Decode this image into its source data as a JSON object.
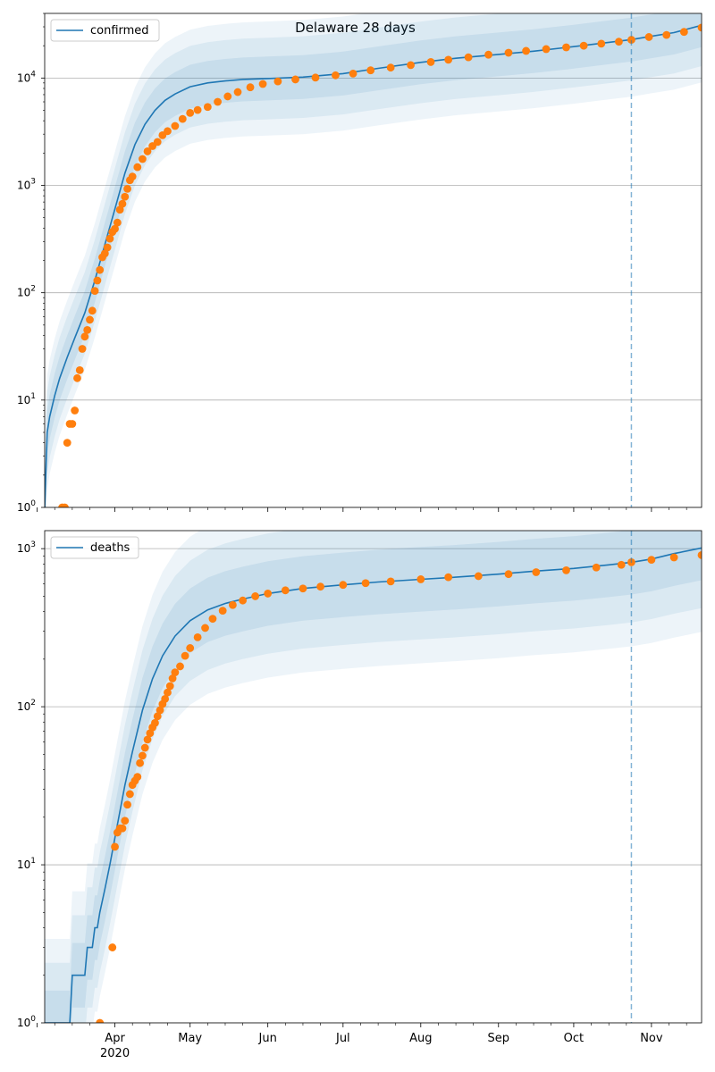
{
  "figure": {
    "title": "Delaware 28 days",
    "date_axis": {
      "month_labels": [
        "Apr",
        "May",
        "Jun",
        "Jul",
        "Aug",
        "Sep",
        "Oct",
        "Nov"
      ],
      "year_label": "2020"
    }
  },
  "colors": {
    "model_line": "#1f77b4",
    "observed_points": "#ff7f0e",
    "band": "#1f77b4",
    "grid": "#b0b0b0",
    "forecast_marker": "#1f77b4"
  },
  "chart_data": [
    {
      "type": "line",
      "panel": "confirmed",
      "legend": "confirmed",
      "legend_location": "upper-left",
      "yscale": "log",
      "ylim": [
        1,
        40000
      ],
      "xlim": [
        "2020-03-04",
        "2020-11-21"
      ],
      "y_tick_labels": [
        "10^0",
        "10^1",
        "10^2",
        "10^3",
        "10^4"
      ],
      "grid": "horizontal",
      "forecast_start": "2020-10-24",
      "model": {
        "x": [
          "2020-03-04",
          "2020-03-05",
          "2020-03-06",
          "2020-03-08",
          "2020-03-10",
          "2020-03-13",
          "2020-03-16",
          "2020-03-20",
          "2020-03-24",
          "2020-03-28",
          "2020-04-01",
          "2020-04-05",
          "2020-04-09",
          "2020-04-13",
          "2020-04-17",
          "2020-04-21",
          "2020-04-25",
          "2020-05-01",
          "2020-05-08",
          "2020-05-15",
          "2020-05-22",
          "2020-06-01",
          "2020-06-15",
          "2020-07-01",
          "2020-07-15",
          "2020-08-01",
          "2020-08-15",
          "2020-09-01",
          "2020-09-15",
          "2020-10-01",
          "2020-10-15",
          "2020-10-24",
          "2020-11-01",
          "2020-11-10",
          "2020-11-21"
        ],
        "y": [
          1,
          5,
          7,
          11,
          16,
          25,
          38,
          65,
          130,
          280,
          600,
          1300,
          2400,
          3700,
          5000,
          6200,
          7100,
          8300,
          9000,
          9400,
          9700,
          9900,
          10200,
          11000,
          12300,
          14000,
          15300,
          16600,
          17800,
          19600,
          21500,
          22800,
          24500,
          26500,
          31000
        ]
      },
      "observed": {
        "x": [
          "2020-03-11",
          "2020-03-12",
          "2020-03-13",
          "2020-03-14",
          "2020-03-15",
          "2020-03-16",
          "2020-03-17",
          "2020-03-18",
          "2020-03-19",
          "2020-03-20",
          "2020-03-21",
          "2020-03-22",
          "2020-03-23",
          "2020-03-24",
          "2020-03-25",
          "2020-03-26",
          "2020-03-27",
          "2020-03-28",
          "2020-03-29",
          "2020-03-30",
          "2020-03-31",
          "2020-04-01",
          "2020-04-02",
          "2020-04-03",
          "2020-04-04",
          "2020-04-05",
          "2020-04-06",
          "2020-04-07",
          "2020-04-08",
          "2020-04-10",
          "2020-04-12",
          "2020-04-14",
          "2020-04-16",
          "2020-04-18",
          "2020-04-20",
          "2020-04-22",
          "2020-04-25",
          "2020-04-28",
          "2020-05-01",
          "2020-05-04",
          "2020-05-08",
          "2020-05-12",
          "2020-05-16",
          "2020-05-20",
          "2020-05-25",
          "2020-05-30",
          "2020-06-05",
          "2020-06-12",
          "2020-06-20",
          "2020-06-28",
          "2020-07-05",
          "2020-07-12",
          "2020-07-20",
          "2020-07-28",
          "2020-08-05",
          "2020-08-12",
          "2020-08-20",
          "2020-08-28",
          "2020-09-05",
          "2020-09-12",
          "2020-09-20",
          "2020-09-28",
          "2020-10-05",
          "2020-10-12",
          "2020-10-19",
          "2020-10-24",
          "2020-10-31",
          "2020-11-07",
          "2020-11-14",
          "2020-11-21"
        ],
        "y": [
          1,
          1,
          4,
          6,
          6,
          8,
          16,
          19,
          30,
          39,
          45,
          56,
          68,
          104,
          130,
          163,
          214,
          232,
          264,
          319,
          368,
          393,
          450,
          593,
          673,
          783,
          928,
          1116,
          1209,
          1479,
          1761,
          2075,
          2323,
          2538,
          2931,
          3200,
          3576,
          4162,
          4734,
          5038,
          5371,
          6000,
          6741,
          7400,
          8200,
          8800,
          9300,
          9700,
          10100,
          10600,
          11000,
          11800,
          12500,
          13200,
          14100,
          14800,
          15600,
          16500,
          17200,
          17900,
          18600,
          19300,
          20000,
          20900,
          21800,
          22700,
          24100,
          25200,
          26900,
          29500
        ]
      }
    },
    {
      "type": "line",
      "panel": "deaths",
      "legend": "deaths",
      "legend_location": "upper-left",
      "yscale": "log",
      "ylim": [
        1,
        1300
      ],
      "xlim": [
        "2020-03-04",
        "2020-11-21"
      ],
      "y_tick_labels": [
        "10^0",
        "10^1",
        "10^2",
        "10^3"
      ],
      "grid": "horizontal",
      "forecast_start": "2020-10-24",
      "model": {
        "x": [
          "2020-03-04",
          "2020-03-14",
          "2020-03-15",
          "2020-03-20",
          "2020-03-21",
          "2020-03-23",
          "2020-03-24",
          "2020-03-25",
          "2020-03-26",
          "2020-03-28",
          "2020-03-30",
          "2020-04-02",
          "2020-04-05",
          "2020-04-08",
          "2020-04-12",
          "2020-04-16",
          "2020-04-20",
          "2020-04-25",
          "2020-05-01",
          "2020-05-08",
          "2020-05-15",
          "2020-05-22",
          "2020-06-01",
          "2020-06-15",
          "2020-07-01",
          "2020-07-15",
          "2020-08-01",
          "2020-08-15",
          "2020-09-01",
          "2020-09-15",
          "2020-10-01",
          "2020-10-15",
          "2020-10-24",
          "2020-11-01",
          "2020-11-10",
          "2020-11-21"
        ],
        "y": [
          1,
          1,
          2,
          2,
          3,
          3,
          4,
          4,
          5,
          7,
          10,
          18,
          32,
          52,
          95,
          150,
          210,
          280,
          350,
          410,
          450,
          480,
          520,
          560,
          590,
          615,
          640,
          660,
          690,
          720,
          750,
          790,
          820,
          860,
          930,
          1010
        ]
      },
      "observed": {
        "x": [
          "2020-03-26",
          "2020-03-31",
          "2020-04-01",
          "2020-04-02",
          "2020-04-03",
          "2020-04-04",
          "2020-04-05",
          "2020-04-06",
          "2020-04-07",
          "2020-04-08",
          "2020-04-09",
          "2020-04-10",
          "2020-04-11",
          "2020-04-12",
          "2020-04-13",
          "2020-04-14",
          "2020-04-15",
          "2020-04-16",
          "2020-04-17",
          "2020-04-18",
          "2020-04-19",
          "2020-04-20",
          "2020-04-21",
          "2020-04-22",
          "2020-04-23",
          "2020-04-24",
          "2020-04-25",
          "2020-04-27",
          "2020-04-29",
          "2020-05-01",
          "2020-05-04",
          "2020-05-07",
          "2020-05-10",
          "2020-05-14",
          "2020-05-18",
          "2020-05-22",
          "2020-05-27",
          "2020-06-01",
          "2020-06-08",
          "2020-06-15",
          "2020-06-22",
          "2020-07-01",
          "2020-07-10",
          "2020-07-20",
          "2020-08-01",
          "2020-08-12",
          "2020-08-24",
          "2020-09-05",
          "2020-09-16",
          "2020-09-28",
          "2020-10-10",
          "2020-10-20",
          "2020-10-24",
          "2020-11-01",
          "2020-11-10",
          "2020-11-21"
        ],
        "y": [
          1,
          3,
          13,
          16,
          17,
          17,
          19,
          24,
          28,
          32,
          34,
          36,
          44,
          49,
          55,
          62,
          68,
          74,
          79,
          87,
          95,
          104,
          112,
          123,
          135,
          151,
          165,
          180,
          210,
          235,
          275,
          315,
          360,
          405,
          440,
          470,
          500,
          520,
          545,
          560,
          575,
          590,
          605,
          620,
          640,
          660,
          670,
          690,
          710,
          730,
          760,
          790,
          820,
          850,
          880,
          910
        ]
      }
    }
  ]
}
